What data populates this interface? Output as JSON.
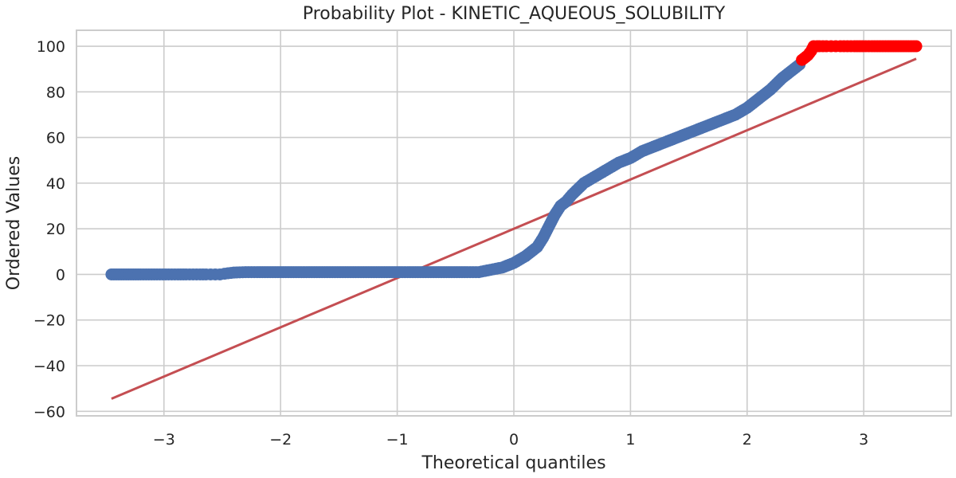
{
  "chart_data": {
    "type": "scatter",
    "title": "Probability Plot - KINETIC_AQUEOUS_SOLUBILITY",
    "xlabel": "Theoretical quantiles",
    "ylabel": "Ordered Values",
    "xlim": [
      -3.75,
      3.75
    ],
    "ylim": [
      -62,
      107
    ],
    "x_ticks": [
      -3,
      -2,
      -1,
      0,
      1,
      2,
      3
    ],
    "x_tick_labels": [
      "−3",
      "−2",
      "−1",
      "0",
      "1",
      "2",
      "3"
    ],
    "y_ticks": [
      -60,
      -40,
      -20,
      0,
      20,
      40,
      60,
      80,
      100
    ],
    "y_tick_labels": [
      "−60",
      "−40",
      "−20",
      "0",
      "20",
      "40",
      "60",
      "80",
      "100"
    ],
    "grid": true,
    "legend": false,
    "series": [
      {
        "kind": "points",
        "color": "#4c72b0",
        "x": [
          -3.45,
          -3.2,
          -3.06,
          -2.96,
          -2.88,
          -2.81,
          -2.75,
          -2.69,
          -2.64,
          -2.6,
          -2.56,
          -2.52,
          -2.48,
          -2.45,
          -2.4,
          -2.3,
          -2.2,
          -2.0,
          -1.8,
          -1.6,
          -1.4,
          -1.2,
          -1.0,
          -0.8,
          -0.6,
          -0.4,
          -0.3,
          -0.2,
          -0.1,
          0.0,
          0.1,
          0.2,
          0.25,
          0.3,
          0.35,
          0.4,
          0.45,
          0.5,
          0.6,
          0.7,
          0.8,
          0.9,
          1.0,
          1.1,
          1.2,
          1.3,
          1.4,
          1.5,
          1.6,
          1.7,
          1.8,
          1.9,
          2.0,
          2.1,
          2.2,
          2.3,
          2.4,
          2.45
        ],
        "y": [
          0,
          0,
          0,
          0,
          0,
          0,
          0,
          0,
          0,
          0,
          0,
          0,
          0.3,
          0.5,
          0.8,
          1,
          1,
          1,
          1,
          1,
          1,
          1,
          1,
          1,
          1,
          1,
          1,
          2,
          3,
          5,
          8,
          12,
          16,
          21,
          26,
          30,
          32,
          35,
          40,
          43,
          46,
          49,
          51,
          54,
          56,
          58,
          60,
          62,
          64,
          66,
          68,
          70,
          73,
          77,
          81,
          86,
          90,
          92
        ]
      },
      {
        "kind": "points",
        "color": "#ff0000",
        "x": [
          2.47,
          2.52,
          2.55,
          2.57,
          2.6,
          2.62,
          2.65,
          2.68,
          2.72,
          2.76,
          2.8,
          2.86,
          2.92,
          2.99,
          3.07,
          3.21,
          3.45
        ],
        "y": [
          94,
          96,
          98,
          100,
          100,
          100,
          100,
          100,
          100,
          100,
          100,
          100,
          100,
          100,
          100,
          100,
          100
        ]
      },
      {
        "kind": "fit-line",
        "color": "#c44e52",
        "x": [
          -3.45,
          3.45
        ],
        "y": [
          -54.5,
          94.5
        ]
      }
    ]
  }
}
